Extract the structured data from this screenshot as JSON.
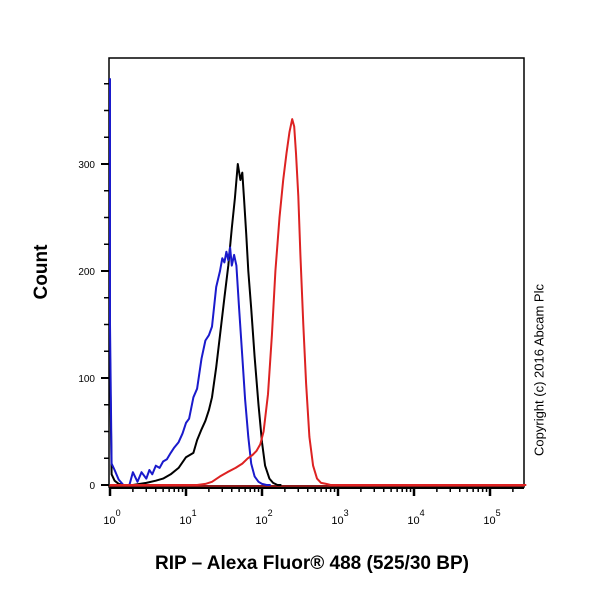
{
  "chart_data": {
    "type": "line",
    "subtype": "flow-cytometry-histogram",
    "title": "",
    "xlabel": "RIP – Alexa Fluor® 488  (525/30 BP)",
    "ylabel": "Count",
    "xscale": "log",
    "xlim": [
      0.9,
      300000
    ],
    "ylim": [
      0,
      390
    ],
    "x_ticks": [
      {
        "value": 1,
        "label": "10",
        "exp": "0"
      },
      {
        "value": 10,
        "label": "10",
        "exp": "1"
      },
      {
        "value": 100,
        "label": "10",
        "exp": "2"
      },
      {
        "value": 1000,
        "label": "10",
        "exp": "3"
      },
      {
        "value": 10000,
        "label": "10",
        "exp": "4"
      },
      {
        "value": 100000,
        "label": "10",
        "exp": "5"
      }
    ],
    "y_ticks": [
      0,
      100,
      200,
      300
    ],
    "grid": false,
    "legend": null,
    "annotation": "Copyright (c) 2016 Abcam Plc",
    "series": [
      {
        "name": "blue",
        "color": "#1a1acc",
        "x": [
          0.95,
          1.0,
          1.05,
          1.15,
          1.3,
          1.5,
          1.8,
          2.0,
          2.3,
          2.6,
          3.0,
          3.3,
          3.6,
          4.0,
          4.5,
          5.0,
          5.6,
          6.3,
          7.0,
          8.0,
          9.0,
          10,
          11,
          12.5,
          14,
          16,
          18,
          20,
          22,
          25,
          28,
          30,
          32,
          34,
          36,
          38,
          40,
          43,
          46,
          50,
          55,
          60,
          66,
          72,
          80,
          90,
          100,
          115,
          130
        ],
        "y": [
          380,
          150,
          20,
          14,
          5,
          0,
          0,
          12,
          3,
          12,
          6,
          14,
          10,
          18,
          16,
          22,
          24,
          30,
          35,
          40,
          48,
          58,
          62,
          82,
          90,
          118,
          135,
          140,
          148,
          185,
          200,
          212,
          208,
          218,
          210,
          222,
          205,
          215,
          205,
          165,
          120,
          80,
          45,
          20,
          8,
          3,
          1,
          0,
          0
        ]
      },
      {
        "name": "black",
        "color": "#000000",
        "x": [
          0.95,
          1.0,
          1.05,
          1.15,
          1.3,
          1.5,
          2.0,
          3.0,
          4.0,
          5.0,
          6.3,
          8.0,
          10,
          12.5,
          14,
          16,
          18,
          20,
          22,
          25,
          28,
          32,
          36,
          40,
          44,
          48,
          52,
          55,
          58,
          62,
          66,
          72,
          80,
          90,
          100,
          110,
          125,
          140,
          160,
          180
        ],
        "y": [
          380,
          120,
          10,
          4,
          1,
          0,
          0,
          2,
          4,
          6,
          10,
          16,
          26,
          30,
          42,
          52,
          60,
          70,
          82,
          110,
          140,
          175,
          205,
          240,
          268,
          300,
          285,
          292,
          268,
          235,
          200,
          165,
          120,
          75,
          40,
          18,
          6,
          2,
          0,
          0
        ]
      },
      {
        "name": "red",
        "color": "#dd2222",
        "x": [
          0.95,
          5,
          10,
          14,
          18,
          22,
          28,
          35,
          45,
          55,
          65,
          75,
          85,
          95,
          105,
          120,
          135,
          150,
          170,
          190,
          210,
          230,
          250,
          265,
          280,
          300,
          320,
          350,
          380,
          420,
          470,
          530,
          600,
          700,
          800,
          1000,
          10000,
          100000,
          300000
        ],
        "y": [
          0,
          0,
          0,
          0,
          1,
          3,
          8,
          12,
          16,
          20,
          25,
          28,
          32,
          38,
          50,
          85,
          140,
          200,
          250,
          285,
          310,
          330,
          342,
          335,
          310,
          270,
          215,
          150,
          95,
          45,
          18,
          6,
          2,
          1,
          0,
          0,
          0,
          0,
          0
        ]
      }
    ]
  },
  "labels": {
    "ylabel": "Count",
    "xlabel": "RIP – Alexa Fluor® 488  (525/30 BP)",
    "copyright": "Copyright (c) 2016 Abcam Plc"
  },
  "colors": {
    "frame": "#000000",
    "blue": "#1a1acc",
    "black": "#000000",
    "red": "#dd2222",
    "baseline": "#8b1a1a"
  }
}
